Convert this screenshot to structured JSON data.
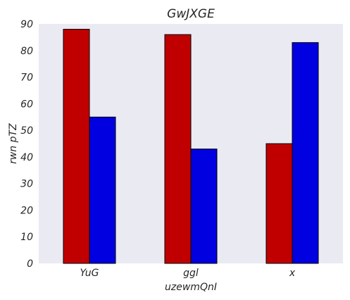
{
  "chart_data": {
    "type": "bar",
    "title": "GwJXGE",
    "xlabel": "uzewmQnI",
    "ylabel": "rwn pTZ",
    "categories": [
      "YuG",
      "ggl",
      "x"
    ],
    "series": [
      {
        "values": [
          88,
          86,
          45
        ],
        "color": "#c00000"
      },
      {
        "values": [
          55,
          43,
          83
        ],
        "color": "#0000e0"
      }
    ],
    "ylim": [
      0,
      90
    ],
    "yticks": [
      0,
      10,
      20,
      30,
      40,
      50,
      60,
      70,
      80,
      90
    ],
    "grid": false,
    "background": "#eaeaf2"
  }
}
